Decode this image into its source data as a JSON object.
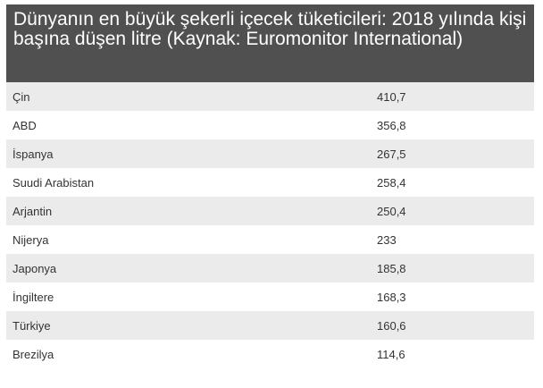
{
  "title": "Dünyanın en büyük şekerli içecek tüketicileri: 2018 yılında kişi başına düşen litre (Kaynak: Euromonitor International)",
  "rows": [
    {
      "country": "Çin",
      "value": "410,7"
    },
    {
      "country": "ABD",
      "value": "356,8"
    },
    {
      "country": "İspanya",
      "value": "267,5"
    },
    {
      "country": "Suudi Arabistan",
      "value": "258,4"
    },
    {
      "country": "Arjantin",
      "value": "250,4"
    },
    {
      "country": "Nijerya",
      "value": "233"
    },
    {
      "country": "Japonya",
      "value": "185,8"
    },
    {
      "country": "İngiltere",
      "value": "168,3"
    },
    {
      "country": "Türkiye",
      "value": "160,6"
    },
    {
      "country": "Brezilya",
      "value": "114,6"
    }
  ]
}
